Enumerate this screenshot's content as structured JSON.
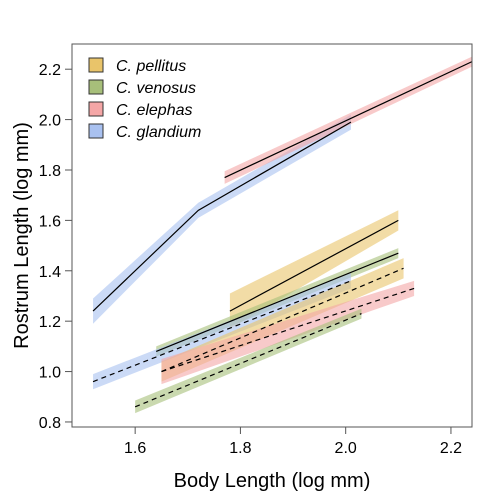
{
  "chart_data": {
    "type": "line",
    "title": "",
    "xlabel": "Body Length (log mm)",
    "ylabel": "Rostrum Length (log mm)",
    "xlim": [
      1.48,
      2.24
    ],
    "ylim": [
      0.78,
      2.3
    ],
    "x_ticks": [
      "1.6",
      "1.8",
      "2.0",
      "2.2"
    ],
    "y_ticks": [
      "0.8",
      "1.0",
      "1.2",
      "1.4",
      "1.6",
      "1.8",
      "2.0",
      "2.2"
    ],
    "grid": false,
    "legend_position": "top-left",
    "species": [
      {
        "name": "C. pellitus",
        "color": "#E9C46A"
      },
      {
        "name": "C. venosus",
        "color": "#A7BF7A"
      },
      {
        "name": "C. elephas",
        "color": "#F4A6A6"
      },
      {
        "name": "C. glandium",
        "color": "#A9C1F0"
      }
    ],
    "series": [
      {
        "species": "C. glandium",
        "line": "solid",
        "x": [
          1.52,
          1.72,
          2.01
        ],
        "y": [
          1.24,
          1.64,
          1.99
        ],
        "band": [
          0.05,
          0.03,
          0.03
        ]
      },
      {
        "species": "C. elephas",
        "line": "solid",
        "x": [
          1.77,
          2.24
        ],
        "y": [
          1.77,
          2.23
        ],
        "band": [
          0.025,
          0.02
        ]
      },
      {
        "species": "C. pellitus",
        "line": "solid",
        "x": [
          1.78,
          2.1
        ],
        "y": [
          1.24,
          1.6
        ],
        "band": [
          0.07,
          0.04
        ]
      },
      {
        "species": "C. venosus",
        "line": "solid",
        "x": [
          1.64,
          2.1
        ],
        "y": [
          1.08,
          1.47
        ],
        "band": [
          0.02,
          0.02
        ]
      },
      {
        "species": "C. glandium",
        "line": "dashed",
        "x": [
          1.52,
          2.01
        ],
        "y": [
          0.96,
          1.36
        ],
        "band": [
          0.03,
          0.03
        ]
      },
      {
        "species": "C. pellitus",
        "line": "dashed",
        "x": [
          1.65,
          2.11
        ],
        "y": [
          1.0,
          1.41
        ],
        "band": [
          0.04,
          0.04
        ]
      },
      {
        "species": "C. elephas",
        "line": "dashed",
        "x": [
          1.65,
          2.13
        ],
        "y": [
          1.0,
          1.33
        ],
        "band": [
          0.05,
          0.03
        ]
      },
      {
        "species": "C. venosus",
        "line": "dashed",
        "x": [
          1.6,
          2.03
        ],
        "y": [
          0.86,
          1.23
        ],
        "band": [
          0.025,
          0.02
        ]
      }
    ]
  }
}
